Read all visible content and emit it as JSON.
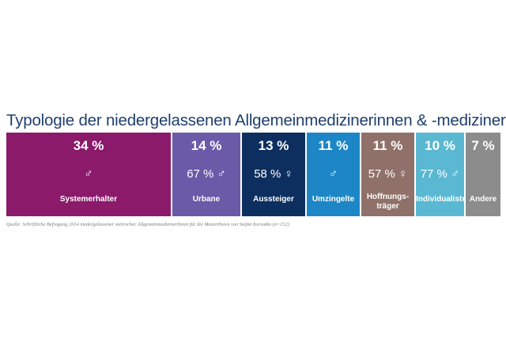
{
  "title": "Typologie der niedergelassenen Allgemeinmedizinerinnen & -mediziner",
  "source": "Quelle: Schriftliche Befragung 2014 niedergelassener steirischer AllgemeinmedizinerInnen für die Masterthesis von Stefan Korsatko (n=152)",
  "chart_data": {
    "type": "bar",
    "orientation": "horizontal-stacked",
    "unit": "%",
    "categories": [
      "Systemerhalter",
      "Urbane",
      "Aussteiger",
      "Umzingelte",
      "Hoffnungs-träger",
      "Individualisten",
      "Andere"
    ],
    "values": [
      34,
      14,
      13,
      11,
      11,
      10,
      7
    ],
    "segments": [
      {
        "label": "Systemerhalter",
        "value": 34,
        "percent_text": "34 %",
        "gender_text": "♂",
        "color": "#8b1a6b"
      },
      {
        "label": "Urbane",
        "value": 14,
        "percent_text": "14 %",
        "gender_text": "67 % ♂",
        "color": "#6a5aa8"
      },
      {
        "label": "Aussteiger",
        "value": 13,
        "percent_text": "13 %",
        "gender_text": "58 % ♀",
        "color": "#0d2f5f"
      },
      {
        "label": "Umzingelte",
        "value": 11,
        "percent_text": "11 %",
        "gender_text": "♂",
        "color": "#1d86c7"
      },
      {
        "label": "Hoffnungs-\nträger",
        "value": 11,
        "percent_text": "11 %",
        "gender_text": "57 % ♀",
        "color": "#8f7169"
      },
      {
        "label": "Individualisten",
        "value": 10,
        "percent_text": "10 %",
        "gender_text": "77 % ♂",
        "color": "#5ab8d2"
      },
      {
        "label": "Andere",
        "value": 7,
        "percent_text": "7 %",
        "gender_text": "",
        "color": "#8c8c8c"
      }
    ]
  }
}
